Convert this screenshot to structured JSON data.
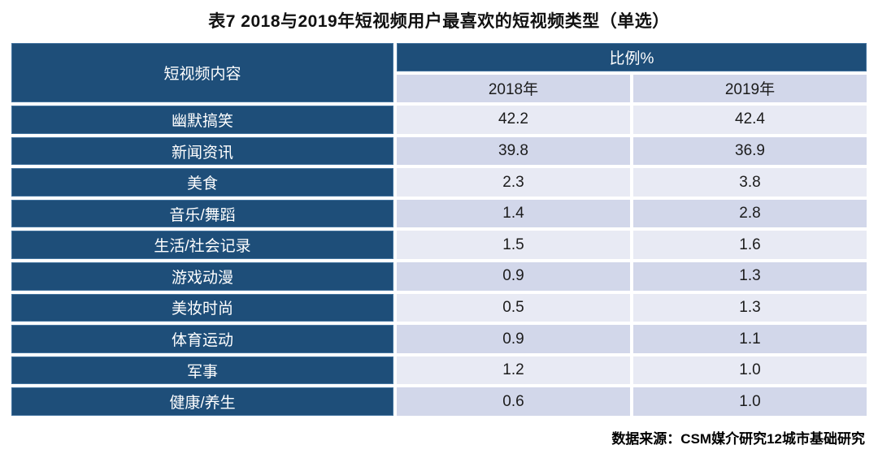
{
  "title": "表7  2018与2019年短视频用户最喜欢的短视频类型（单选）",
  "table": {
    "col_header": "短视频内容",
    "group_header": "比例%",
    "year_headers": [
      "2018年",
      "2019年"
    ],
    "rows": [
      {
        "label": "幽默搞笑",
        "v2018": "42.2",
        "v2019": "42.4"
      },
      {
        "label": "新闻资讯",
        "v2018": "39.8",
        "v2019": "36.9"
      },
      {
        "label": "美食",
        "v2018": "2.3",
        "v2019": "3.8"
      },
      {
        "label": "音乐/舞蹈",
        "v2018": "1.4",
        "v2019": "2.8"
      },
      {
        "label": "生活/社会记录",
        "v2018": "1.5",
        "v2019": "1.6"
      },
      {
        "label": "游戏动漫",
        "v2018": "0.9",
        "v2019": "1.3"
      },
      {
        "label": "美妆时尚",
        "v2018": "0.5",
        "v2019": "1.3"
      },
      {
        "label": "体育运动",
        "v2018": "0.9",
        "v2019": "1.1"
      },
      {
        "label": "军事",
        "v2018": "1.2",
        "v2019": "1.0"
      },
      {
        "label": "健康/养生",
        "v2018": "0.6",
        "v2019": "1.0"
      }
    ]
  },
  "footer": "数据来源：CSM媒介研究12城市基础研究",
  "colors": {
    "header_bg": "#1e4e79",
    "header_border": "#44749f",
    "band_dark": "#d2d7ea",
    "band_light": "#e8eaf4",
    "text": "#1c1c1c"
  },
  "chart_data": {
    "type": "table",
    "title": "表7  2018与2019年短视频用户最喜欢的短视频类型（单选）",
    "unit": "比例%",
    "categories": [
      "幽默搞笑",
      "新闻资讯",
      "美食",
      "音乐/舞蹈",
      "生活/社会记录",
      "游戏动漫",
      "美妆时尚",
      "体育运动",
      "军事",
      "健康/养生"
    ],
    "series": [
      {
        "name": "2018年",
        "values": [
          42.2,
          39.8,
          2.3,
          1.4,
          1.5,
          0.9,
          0.5,
          0.9,
          1.2,
          0.6
        ]
      },
      {
        "name": "2019年",
        "values": [
          42.4,
          36.9,
          3.8,
          2.8,
          1.6,
          1.3,
          1.3,
          1.1,
          1.0,
          1.0
        ]
      }
    ],
    "source": "数据来源：CSM媒介研究12城市基础研究",
    "layout": {
      "grid": false,
      "legend_position": "none",
      "banding": "alternating-rows"
    }
  }
}
